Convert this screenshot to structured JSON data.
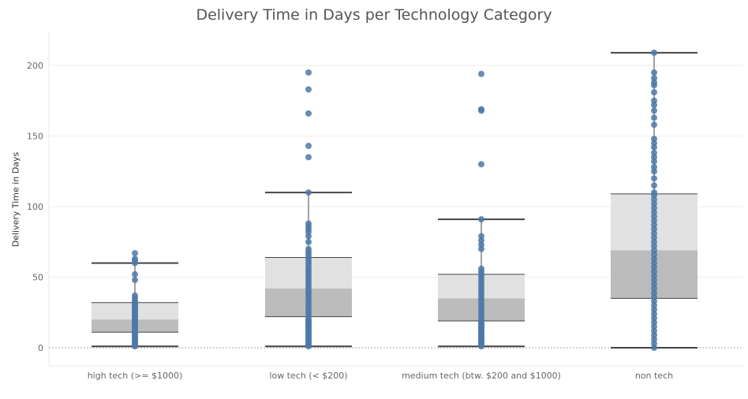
{
  "chart_data": {
    "type": "boxplot",
    "title": "Delivery Time in Days per Technology Category",
    "ylabel": "Delivery Time in Days",
    "ylim": [
      -3,
      213
    ],
    "yticks": [
      0,
      50,
      100,
      150,
      200
    ],
    "grid": true,
    "categories": [
      "high tech (>= $1000)",
      "low tech (< $200)",
      "medium tech (btw. $200 and $1000)",
      "non tech"
    ],
    "boxes": [
      {
        "min": 1,
        "q1": 11,
        "median": 20,
        "q3": 32,
        "max": 60
      },
      {
        "min": 1,
        "q1": 22,
        "median": 42,
        "q3": 64,
        "max": 110
      },
      {
        "min": 1,
        "q1": 19,
        "median": 35,
        "q3": 52,
        "max": 91
      },
      {
        "min": 0,
        "q1": 35,
        "median": 69,
        "q3": 109,
        "max": 209
      }
    ],
    "points": [
      [
        1,
        2,
        3,
        4,
        5,
        6,
        7,
        8,
        9,
        10,
        11,
        12,
        13,
        14,
        15,
        16,
        17,
        18,
        19,
        20,
        21,
        22,
        23,
        24,
        25,
        26,
        27,
        28,
        29,
        30,
        31,
        32,
        33,
        35,
        37,
        48,
        52,
        60,
        62,
        63,
        67
      ],
      [
        1,
        2,
        3,
        4,
        5,
        6,
        7,
        8,
        9,
        10,
        11,
        12,
        13,
        14,
        15,
        16,
        17,
        18,
        19,
        20,
        22,
        24,
        26,
        28,
        30,
        32,
        34,
        36,
        38,
        40,
        42,
        44,
        46,
        48,
        50,
        52,
        54,
        56,
        58,
        60,
        62,
        64,
        66,
        68,
        70,
        75,
        79,
        82,
        84,
        86,
        88,
        110,
        135,
        143,
        166,
        183,
        195
      ],
      [
        1,
        2,
        3,
        4,
        5,
        6,
        7,
        8,
        9,
        10,
        11,
        12,
        13,
        14,
        15,
        16,
        17,
        18,
        19,
        20,
        22,
        24,
        26,
        28,
        30,
        32,
        34,
        36,
        38,
        40,
        42,
        44,
        46,
        48,
        50,
        52,
        54,
        56,
        70,
        73,
        76,
        79,
        91,
        130,
        168,
        169,
        194
      ],
      [
        0,
        3,
        6,
        9,
        12,
        15,
        18,
        21,
        24,
        27,
        30,
        33,
        36,
        39,
        42,
        45,
        48,
        51,
        54,
        57,
        60,
        63,
        66,
        69,
        72,
        75,
        78,
        81,
        84,
        87,
        90,
        93,
        96,
        99,
        102,
        105,
        108,
        110,
        115,
        120,
        125,
        128,
        132,
        135,
        138,
        142,
        145,
        148,
        158,
        163,
        168,
        172,
        175,
        181,
        186,
        188,
        191,
        195,
        209
      ]
    ],
    "colors": {
      "point": "#4e79a7",
      "box_upper": "#e1e1e1",
      "box_lower": "#bcbcbc",
      "whisker": "#444444",
      "grid": "#eeeeee",
      "zero_line": "#aaaaaa",
      "tick_text": "#666666"
    }
  }
}
